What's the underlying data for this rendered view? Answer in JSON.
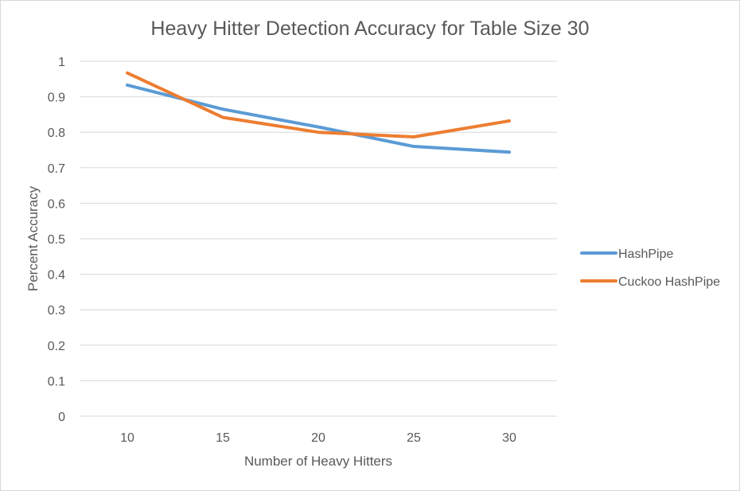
{
  "chart_data": {
    "type": "line",
    "title": "Heavy Hitter Detection Accuracy for Table Size 30",
    "xlabel": "Number of Heavy Hitters",
    "ylabel": "Percent Accuracy",
    "categories": [
      "10",
      "15",
      "20",
      "25",
      "30"
    ],
    "ylim": [
      0,
      1
    ],
    "yticks": [
      "0",
      "0.1",
      "0.2",
      "0.3",
      "0.4",
      "0.5",
      "0.6",
      "0.7",
      "0.8",
      "0.9",
      "1"
    ],
    "grid": true,
    "legend_position": "right",
    "series": [
      {
        "name": "HashPipe",
        "color": "#5b9bd5",
        "values": [
          0.933,
          0.865,
          0.815,
          0.76,
          0.744
        ]
      },
      {
        "name": "Cuckoo HashPipe",
        "color": "#ed7d31",
        "values": [
          0.967,
          0.842,
          0.8,
          0.787,
          0.832
        ]
      }
    ]
  }
}
